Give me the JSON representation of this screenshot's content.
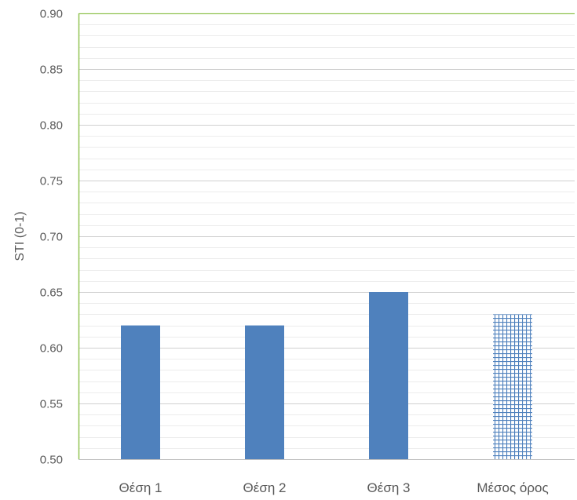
{
  "chart_data": {
    "type": "bar",
    "title": "",
    "xlabel": "",
    "ylabel": "STI (0-1)",
    "ylim": [
      0.5,
      0.9
    ],
    "y_major_ticks": [
      "0.50",
      "0.55",
      "0.60",
      "0.65",
      "0.70",
      "0.75",
      "0.80",
      "0.85",
      "0.90"
    ],
    "y_minor_step": 0.01,
    "grid": true,
    "categories": [
      "Θέση 1",
      "Θέση 2",
      "Θέση 3",
      "Μέσος όρος"
    ],
    "values": [
      0.62,
      0.62,
      0.65,
      0.63
    ],
    "bar_styles": [
      "solid",
      "solid",
      "solid",
      "grid-pattern"
    ],
    "colors": {
      "bar": "#4f81bd",
      "axis": "#92c353",
      "grid_major": "#d0d0d0",
      "grid_minor": "#ececec",
      "baseline": "#bfbfbf"
    }
  }
}
